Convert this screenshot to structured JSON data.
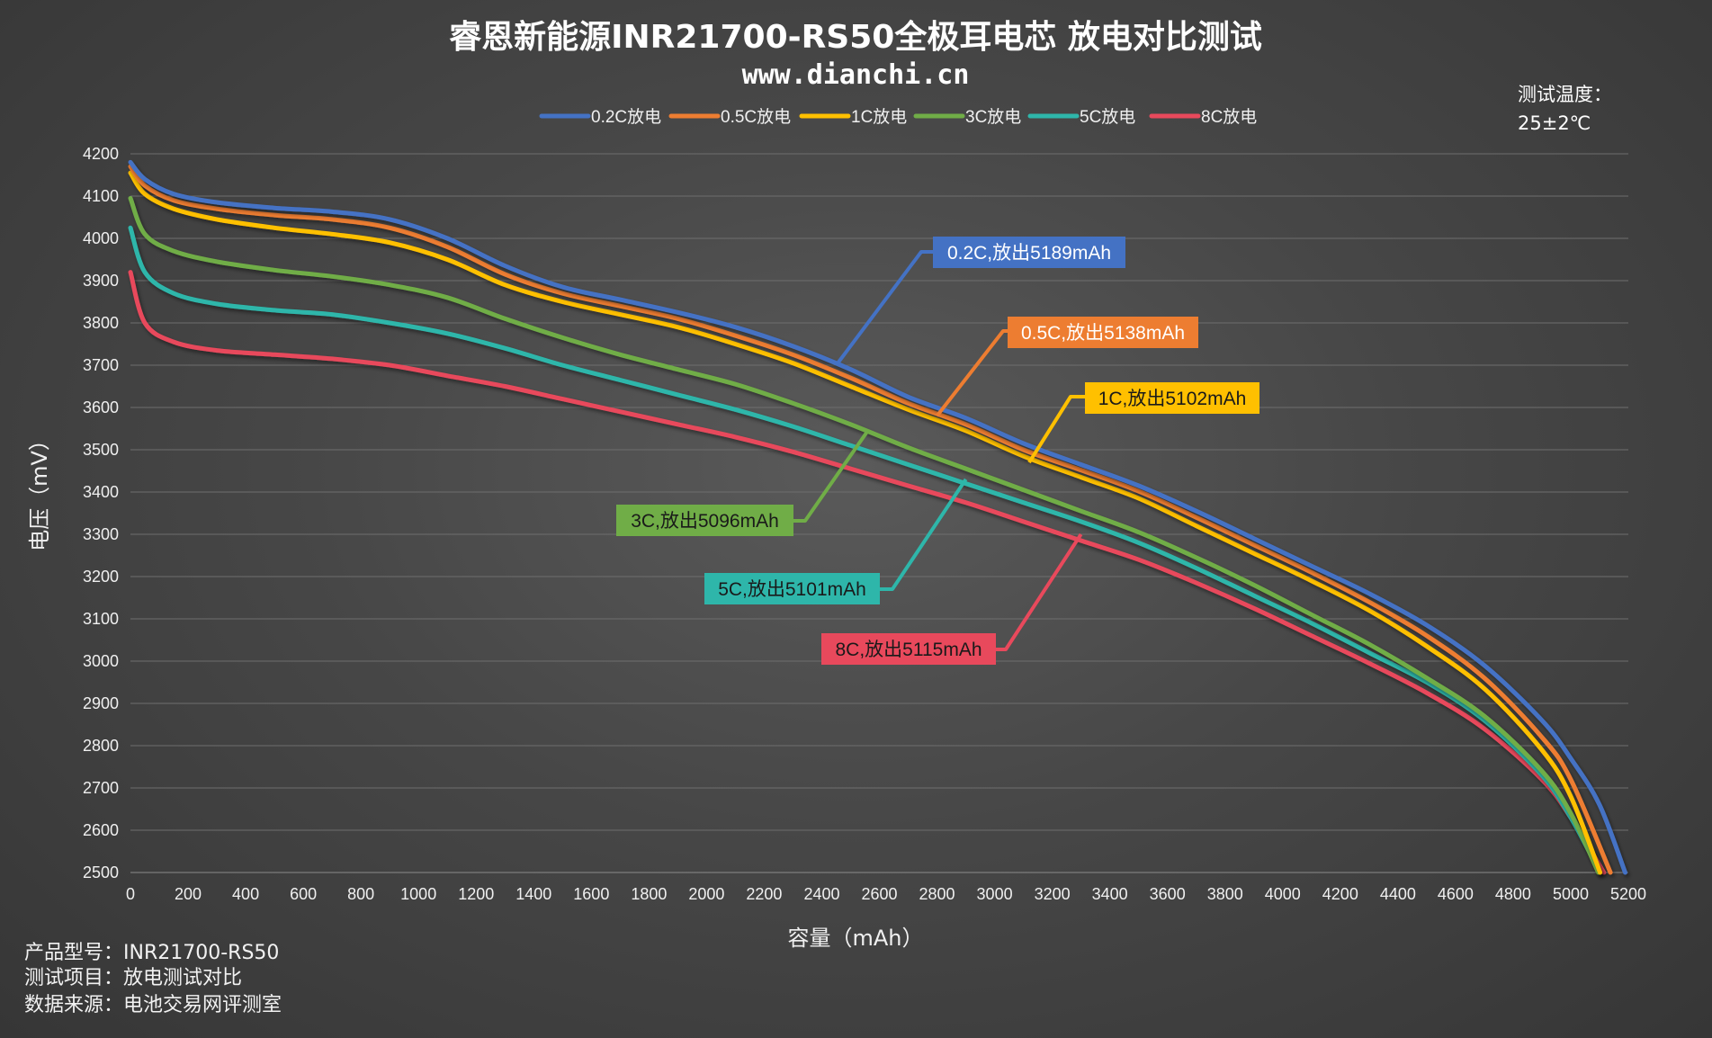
{
  "chart_data": {
    "type": "line",
    "title": "睿恩新能源INR21700-RS50全极耳电芯 放电对比测试",
    "subtitle": "www.dianchi.cn",
    "xlabel": "容量（mAh）",
    "ylabel": "电压（mV）",
    "xlim": [
      0,
      5200
    ],
    "ylim": [
      2500,
      4200
    ],
    "xticks": [
      0,
      200,
      400,
      600,
      800,
      1000,
      1200,
      1400,
      1600,
      1800,
      2000,
      2200,
      2400,
      2600,
      2800,
      3000,
      3200,
      3400,
      3600,
      3800,
      4000,
      4200,
      4400,
      4600,
      4800,
      5000,
      5200
    ],
    "yticks": [
      2500,
      2600,
      2700,
      2800,
      2900,
      3000,
      3100,
      3200,
      3300,
      3400,
      3500,
      3600,
      3700,
      3800,
      3900,
      4000,
      4100,
      4200
    ],
    "grid": "horizontal",
    "legend_position": "top",
    "series": [
      {
        "name": "0.2C放电",
        "color": "#4472C4",
        "x": [
          0,
          50,
          150,
          300,
          500,
          700,
          900,
          1100,
          1300,
          1500,
          1700,
          1900,
          2100,
          2300,
          2500,
          2700,
          2900,
          3100,
          3300,
          3500,
          3700,
          3900,
          4100,
          4300,
          4500,
          4700,
          4900,
          5000,
          5100,
          5189
        ],
        "y": [
          4180,
          4140,
          4105,
          4085,
          4072,
          4063,
          4045,
          4000,
          3935,
          3885,
          3855,
          3825,
          3790,
          3745,
          3690,
          3625,
          3575,
          3515,
          3465,
          3415,
          3355,
          3290,
          3225,
          3160,
          3085,
          2990,
          2860,
          2770,
          2660,
          2500
        ]
      },
      {
        "name": "0.5C放电",
        "color": "#ED7D31",
        "x": [
          0,
          50,
          150,
          300,
          500,
          700,
          900,
          1100,
          1300,
          1500,
          1700,
          1900,
          2100,
          2300,
          2500,
          2700,
          2900,
          3100,
          3300,
          3500,
          3700,
          3900,
          4100,
          4300,
          4500,
          4700,
          4900,
          5000,
          5138
        ],
        "y": [
          4170,
          4125,
          4090,
          4070,
          4055,
          4045,
          4025,
          3980,
          3915,
          3870,
          3840,
          3810,
          3770,
          3725,
          3670,
          3610,
          3560,
          3500,
          3452,
          3402,
          3340,
          3275,
          3210,
          3140,
          3060,
          2960,
          2820,
          2720,
          2500
        ]
      },
      {
        "name": "1C放电",
        "color": "#FFC000",
        "x": [
          0,
          50,
          150,
          300,
          500,
          700,
          900,
          1100,
          1300,
          1500,
          1700,
          1900,
          2100,
          2300,
          2500,
          2700,
          2900,
          3100,
          3300,
          3500,
          3700,
          3900,
          4100,
          4300,
          4500,
          4700,
          4900,
          5000,
          5102
        ],
        "y": [
          4155,
          4105,
          4070,
          4045,
          4025,
          4010,
          3990,
          3950,
          3890,
          3850,
          3820,
          3790,
          3750,
          3705,
          3650,
          3595,
          3545,
          3485,
          3435,
          3385,
          3320,
          3255,
          3190,
          3120,
          3035,
          2935,
          2790,
          2680,
          2500
        ]
      },
      {
        "name": "3C放电",
        "color": "#70AD47",
        "x": [
          0,
          50,
          150,
          300,
          500,
          700,
          900,
          1100,
          1300,
          1500,
          1700,
          1900,
          2100,
          2300,
          2500,
          2700,
          2900,
          3100,
          3300,
          3500,
          3700,
          3900,
          4100,
          4300,
          4500,
          4700,
          4900,
          5000,
          5096
        ],
        "y": [
          4095,
          4010,
          3970,
          3945,
          3925,
          3910,
          3890,
          3860,
          3810,
          3765,
          3725,
          3690,
          3655,
          3610,
          3560,
          3505,
          3455,
          3405,
          3355,
          3305,
          3245,
          3180,
          3110,
          3040,
          2960,
          2870,
          2740,
          2640,
          2500
        ]
      },
      {
        "name": "5C放电",
        "color": "#2EB6AA",
        "x": [
          0,
          50,
          150,
          300,
          500,
          700,
          900,
          1100,
          1300,
          1500,
          1700,
          1900,
          2100,
          2300,
          2500,
          2700,
          2900,
          3100,
          3300,
          3500,
          3700,
          3900,
          4100,
          4300,
          4500,
          4700,
          4900,
          5000,
          5101
        ],
        "y": [
          4025,
          3920,
          3870,
          3845,
          3830,
          3820,
          3800,
          3775,
          3740,
          3700,
          3665,
          3630,
          3595,
          3555,
          3510,
          3465,
          3420,
          3375,
          3330,
          3280,
          3220,
          3155,
          3090,
          3020,
          2950,
          2860,
          2730,
          2630,
          2500
        ]
      },
      {
        "name": "8C放电",
        "color": "#E8495C",
        "x": [
          0,
          50,
          150,
          300,
          500,
          700,
          900,
          1100,
          1300,
          1500,
          1700,
          1900,
          2100,
          2300,
          2500,
          2700,
          2900,
          3100,
          3300,
          3500,
          3700,
          3900,
          4100,
          4300,
          4500,
          4700,
          4900,
          5000,
          5115
        ],
        "y": [
          3920,
          3800,
          3755,
          3735,
          3725,
          3715,
          3700,
          3675,
          3650,
          3620,
          3590,
          3560,
          3530,
          3495,
          3455,
          3415,
          3375,
          3330,
          3285,
          3240,
          3185,
          3125,
          3060,
          2995,
          2925,
          2840,
          2720,
          2630,
          2500
        ]
      }
    ],
    "annotations": [
      {
        "text": "0.2C,放出5189mAh",
        "color": "#4472C4",
        "text_color": "#ffffff",
        "point": [
          2450,
          3700
        ]
      },
      {
        "text": "0.5C,放出5138mAh",
        "color": "#ED7D31",
        "text_color": "#ffffff",
        "point": [
          2800,
          3580
        ]
      },
      {
        "text": "1C,放出5102mAh",
        "color": "#FFC000",
        "text_color": "#1a1a1a",
        "point": [
          3120,
          3470
        ]
      },
      {
        "text": "3C,放出5096mAh",
        "color": "#70AD47",
        "text_color": "#1a1a1a",
        "point": [
          2560,
          3545
        ]
      },
      {
        "text": "5C,放出5101mAh",
        "color": "#2EB6AA",
        "text_color": "#1a1a1a",
        "point": [
          2900,
          3430
        ]
      },
      {
        "text": "8C,放出5115mAh",
        "color": "#E8495C",
        "text_color": "#1a1a1a",
        "point": [
          3300,
          3300
        ]
      }
    ]
  },
  "test_temp": {
    "label": "测试温度：",
    "value": "25±2℃"
  },
  "footer": {
    "line1": "产品型号：INR21700-RS50",
    "line2": "测试项目：放电测试对比",
    "line3": "数据来源：电池交易网评测室"
  }
}
